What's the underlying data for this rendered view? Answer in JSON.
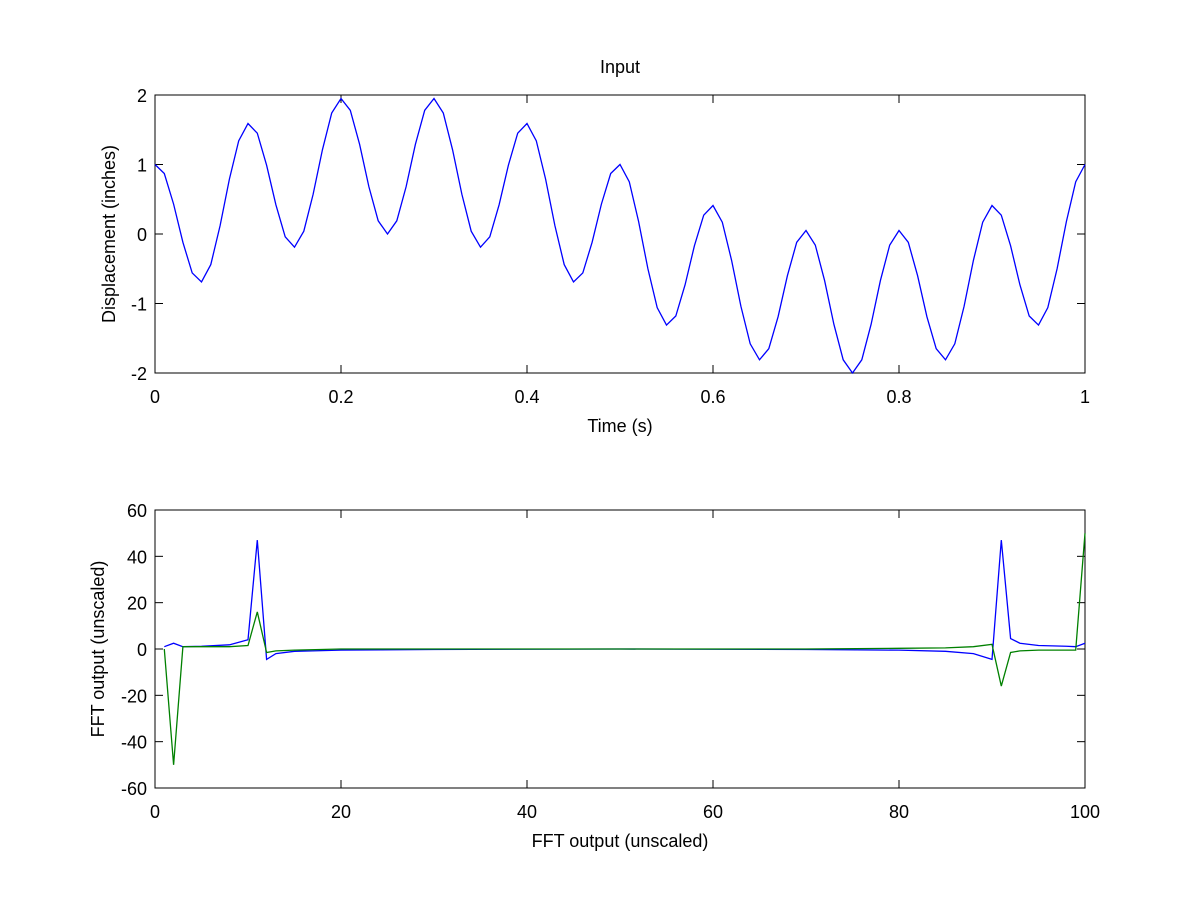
{
  "chart_data": [
    {
      "type": "line",
      "title": "Input",
      "xlabel": "Time (s)",
      "ylabel": "Displacement (inches)",
      "x": [
        0,
        0.01,
        0.02,
        0.03,
        0.04,
        0.05,
        0.06,
        0.07,
        0.08,
        0.09,
        0.1,
        0.11,
        0.12,
        0.13,
        0.14,
        0.15,
        0.16,
        0.17,
        0.18,
        0.19,
        0.2,
        0.21,
        0.22,
        0.23,
        0.24,
        0.25,
        0.26,
        0.27,
        0.28,
        0.29,
        0.3,
        0.31,
        0.32,
        0.33,
        0.34,
        0.35,
        0.36,
        0.37,
        0.38,
        0.39,
        0.4,
        0.41,
        0.42,
        0.43,
        0.44,
        0.45,
        0.46,
        0.47,
        0.48,
        0.49,
        0.5,
        0.51,
        0.52,
        0.53,
        0.54,
        0.55,
        0.56,
        0.57,
        0.58,
        0.59,
        0.6,
        0.61,
        0.62,
        0.63,
        0.64,
        0.65,
        0.66,
        0.67,
        0.68,
        0.69,
        0.7,
        0.71,
        0.72,
        0.73,
        0.74,
        0.75,
        0.76,
        0.77,
        0.78,
        0.79,
        0.8,
        0.81,
        0.82,
        0.83,
        0.84,
        0.85,
        0.86,
        0.87,
        0.88,
        0.89,
        0.9,
        0.91,
        0.92,
        0.93,
        0.94,
        0.95,
        0.96,
        0.97,
        0.98,
        0.99,
        1
      ],
      "series": [
        {
          "color": "#0000ff",
          "values": [
            1,
            0.87,
            0.43,
            -0.12,
            -0.56,
            -0.69,
            -0.44,
            0.12,
            0.79,
            1.34,
            1.59,
            1.45,
            0.99,
            0.42,
            -0.04,
            -0.19,
            0.04,
            0.57,
            1.21,
            1.74,
            1.95,
            1.78,
            1.29,
            0.68,
            0.19,
            0,
            0.19,
            0.68,
            1.29,
            1.78,
            1.95,
            1.74,
            1.21,
            0.57,
            0.04,
            -0.19,
            -0.04,
            0.42,
            0.99,
            1.45,
            1.59,
            1.34,
            0.79,
            0.12,
            -0.44,
            -0.69,
            -0.56,
            -0.12,
            0.43,
            0.87,
            1,
            0.75,
            0.18,
            -0.5,
            -1.06,
            -1.31,
            -1.18,
            -0.73,
            -0.17,
            0.27,
            0.41,
            0.17,
            -0.38,
            -1.04,
            -1.58,
            -1.81,
            -1.65,
            -1.19,
            -0.6,
            -0.12,
            0.05,
            -0.16,
            -0.67,
            -1.3,
            -1.81,
            -2,
            -1.81,
            -1.3,
            -0.67,
            -0.16,
            0.05,
            -0.12,
            -0.6,
            -1.19,
            -1.65,
            -1.81,
            -1.58,
            -1.04,
            -0.38,
            0.17,
            0.41,
            0.27,
            -0.17,
            -0.73,
            -1.18,
            -1.31,
            -1.06,
            -0.5,
            0.18,
            0.75,
            1
          ]
        }
      ],
      "xlim": [
        0,
        1
      ],
      "ylim": [
        -2,
        2
      ],
      "xticks": [
        0,
        0.2,
        0.4,
        0.6,
        0.8,
        1
      ],
      "yticks": [
        -2,
        -1,
        0,
        1,
        2
      ]
    },
    {
      "type": "line",
      "xlabel": "FFT output (unscaled)",
      "ylabel": "FFT output (unscaled)",
      "x": [
        1,
        2,
        3,
        5,
        8,
        10,
        11,
        12,
        13,
        15,
        20,
        30,
        50,
        70,
        80,
        85,
        88,
        90,
        91,
        92,
        93,
        95,
        98,
        99,
        100
      ],
      "series": [
        {
          "color": "#0000ff",
          "values": [
            1,
            2.5,
            1,
            1.2,
            1.8,
            4,
            47,
            -4.5,
            -2,
            -1,
            -0.5,
            -0.2,
            0,
            -0.2,
            -0.5,
            -1,
            -2,
            -4.5,
            47,
            4.5,
            2.5,
            1.5,
            1.2,
            1,
            2.5
          ]
        },
        {
          "color": "#008000",
          "values": [
            0,
            -50,
            1,
            1,
            1,
            1.5,
            16,
            -1.5,
            -0.8,
            -0.5,
            0,
            0,
            0,
            0,
            0.3,
            0.5,
            1,
            2,
            -16,
            -1.5,
            -0.8,
            -0.5,
            -0.5,
            -0.5,
            50
          ]
        }
      ],
      "xlim": [
        0,
        100
      ],
      "ylim": [
        -60,
        60
      ],
      "xticks": [
        0,
        20,
        40,
        60,
        80,
        100
      ],
      "yticks": [
        -60,
        -40,
        -20,
        0,
        20,
        40,
        60
      ]
    }
  ]
}
